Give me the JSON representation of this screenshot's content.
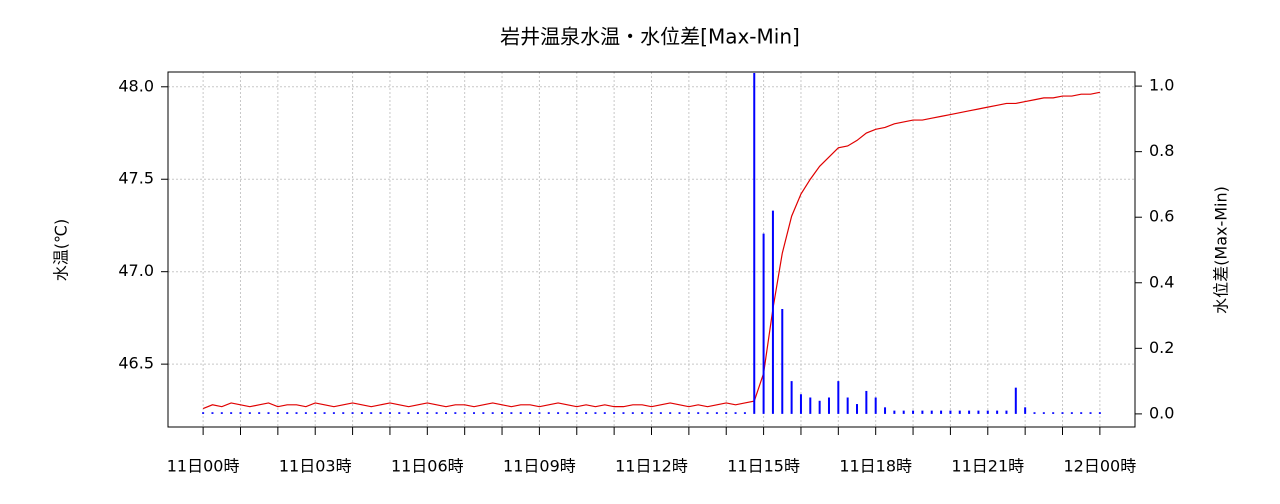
{
  "chart_data": {
    "type": "line",
    "title": "岩井温泉水温・水位差[Max-Min]",
    "ylabel": "水温(℃)",
    "y2label": "水位差(Max-Min)",
    "x": [
      0,
      0.25,
      0.5,
      0.75,
      1,
      1.25,
      1.5,
      1.75,
      2,
      2.25,
      2.5,
      2.75,
      3,
      3.25,
      3.5,
      3.75,
      4,
      4.25,
      4.5,
      4.75,
      5,
      5.25,
      5.5,
      5.75,
      6,
      6.25,
      6.5,
      6.75,
      7,
      7.25,
      7.5,
      7.75,
      8,
      8.25,
      8.5,
      8.75,
      9,
      9.25,
      9.5,
      9.75,
      10,
      10.25,
      10.5,
      10.75,
      11,
      11.25,
      11.5,
      11.75,
      12,
      12.25,
      12.5,
      12.75,
      13,
      13.25,
      13.5,
      13.75,
      14,
      14.25,
      14.5,
      14.75,
      15,
      15.25,
      15.5,
      15.75,
      16,
      16.25,
      16.5,
      16.75,
      17,
      17.25,
      17.5,
      17.75,
      18,
      18.25,
      18.5,
      18.75,
      19,
      19.25,
      19.5,
      19.75,
      20,
      20.25,
      20.5,
      20.75,
      21,
      21.25,
      21.5,
      21.75,
      22,
      22.25,
      22.5,
      22.75,
      23,
      23.25,
      23.5,
      23.75,
      24
    ],
    "series": [
      {
        "name": "水温",
        "color": "#e00000",
        "kind": "line",
        "values": [
          46.26,
          46.28,
          46.27,
          46.29,
          46.28,
          46.27,
          46.28,
          46.29,
          46.27,
          46.28,
          46.28,
          46.27,
          46.29,
          46.28,
          46.27,
          46.28,
          46.29,
          46.28,
          46.27,
          46.28,
          46.29,
          46.28,
          46.27,
          46.28,
          46.29,
          46.28,
          46.27,
          46.28,
          46.28,
          46.27,
          46.28,
          46.29,
          46.28,
          46.27,
          46.28,
          46.28,
          46.27,
          46.28,
          46.29,
          46.28,
          46.27,
          46.28,
          46.27,
          46.28,
          46.27,
          46.27,
          46.28,
          46.28,
          46.27,
          46.28,
          46.29,
          46.28,
          46.27,
          46.28,
          46.27,
          46.28,
          46.29,
          46.28,
          46.29,
          46.3,
          46.45,
          46.8,
          47.1,
          47.3,
          47.42,
          47.5,
          47.57,
          47.62,
          47.67,
          47.68,
          47.71,
          47.75,
          47.77,
          47.78,
          47.8,
          47.81,
          47.82,
          47.82,
          47.83,
          47.84,
          47.85,
          47.86,
          47.87,
          47.88,
          47.89,
          47.9,
          47.91,
          47.91,
          47.92,
          47.93,
          47.94,
          47.94,
          47.95,
          47.95,
          47.96,
          47.96,
          47.97
        ]
      },
      {
        "name": "水位差",
        "color": "#0000ff",
        "kind": "spikes",
        "axis": "y2",
        "values": [
          0.005,
          0.005,
          0.005,
          0.005,
          0.005,
          0.005,
          0.005,
          0.005,
          0.005,
          0.005,
          0.005,
          0.005,
          0.005,
          0.005,
          0.005,
          0.005,
          0.005,
          0.005,
          0.005,
          0.005,
          0.005,
          0.005,
          0.005,
          0.005,
          0.005,
          0.005,
          0.005,
          0.005,
          0.005,
          0.005,
          0.005,
          0.005,
          0.005,
          0.005,
          0.005,
          0.005,
          0.005,
          0.005,
          0.005,
          0.005,
          0.005,
          0.005,
          0.005,
          0.005,
          0.005,
          0.005,
          0.005,
          0.005,
          0.005,
          0.005,
          0.005,
          0.005,
          0.005,
          0.005,
          0.005,
          0.005,
          0.005,
          0.005,
          0.005,
          1.04,
          0.55,
          0.62,
          0.32,
          0.1,
          0.06,
          0.05,
          0.04,
          0.05,
          0.1,
          0.05,
          0.03,
          0.07,
          0.05,
          0.02,
          0.01,
          0.01,
          0.01,
          0.01,
          0.01,
          0.01,
          0.01,
          0.01,
          0.01,
          0.01,
          0.01,
          0.01,
          0.01,
          0.08,
          0.02,
          0.005,
          0.005,
          0.005,
          0.005,
          0.005,
          0.005,
          0.005,
          0.005
        ]
      }
    ],
    "xlim": [
      -0.94,
      24.94
    ],
    "xticks": [
      {
        "value": 0,
        "label": "11日00時"
      },
      {
        "value": 3,
        "label": "11日03時"
      },
      {
        "value": 6,
        "label": "11日06時"
      },
      {
        "value": 9,
        "label": "11日09時"
      },
      {
        "value": 12,
        "label": "11日12時"
      },
      {
        "value": 15,
        "label": "11日15時"
      },
      {
        "value": 18,
        "label": "11日18時"
      },
      {
        "value": 21,
        "label": "11日21時"
      },
      {
        "value": 24,
        "label": "12日00時"
      }
    ],
    "xminorticks": [
      1,
      2,
      4,
      5,
      7,
      8,
      10,
      11,
      13,
      14,
      16,
      17,
      19,
      20,
      22,
      23
    ],
    "ylim": [
      46.16,
      48.08
    ],
    "yticks": [
      46.5,
      {
        "value": 47,
        "label": "47.0"
      },
      47.5,
      {
        "value": 48,
        "label": "48.0"
      }
    ],
    "y2lim": [
      -0.04,
      1.043
    ],
    "y2ticks": [
      {
        "value": 0,
        "label": "0.0"
      },
      0.2,
      0.4,
      0.6,
      0.8,
      {
        "value": 1,
        "label": "1.0"
      }
    ],
    "grid": true
  }
}
